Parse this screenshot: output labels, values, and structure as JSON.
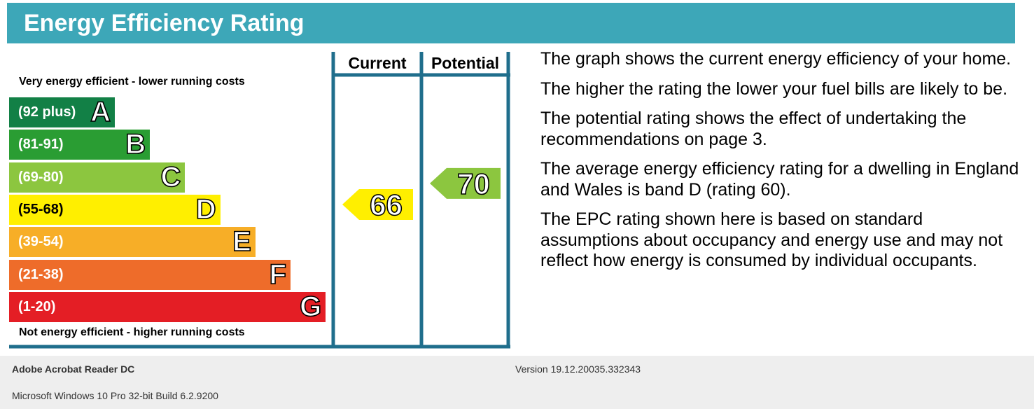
{
  "header": {
    "title": "Energy Efficiency Rating"
  },
  "chart_data": {
    "type": "bar",
    "title": "Energy Efficiency Rating",
    "top_label": "Very energy efficient - lower running costs",
    "bottom_label": "Not energy efficient - higher running costs",
    "bands": [
      {
        "letter": "A",
        "range": "(92 plus)",
        "color": "#128046",
        "text_dark": false
      },
      {
        "letter": "B",
        "range": "(81-91)",
        "color": "#2a9d33",
        "text_dark": false
      },
      {
        "letter": "C",
        "range": "(69-80)",
        "color": "#8cc63f",
        "text_dark": false
      },
      {
        "letter": "D",
        "range": "(55-68)",
        "color": "#ffef00",
        "text_dark": true
      },
      {
        "letter": "E",
        "range": "(39-54)",
        "color": "#f7ae27",
        "text_dark": false
      },
      {
        "letter": "F",
        "range": "(21-38)",
        "color": "#ee6c2a",
        "text_dark": false
      },
      {
        "letter": "G",
        "range": "(1-20)",
        "color": "#e41e25",
        "text_dark": false
      }
    ],
    "columns": [
      "Current",
      "Potential"
    ],
    "current": {
      "value": 66,
      "band": "D",
      "color": "#ffef00"
    },
    "potential": {
      "value": 70,
      "band": "C",
      "color": "#8cc63f"
    }
  },
  "description": [
    "The graph shows the current energy efficiency of your home.",
    "The higher the rating the lower your fuel bills are likely to be.",
    "The potential rating shows the effect of undertaking the recommendations on page 3.",
    "The average energy efficiency rating for a dwelling in England and Wales is band D (rating 60).",
    "The EPC rating shown here is based on standard assumptions about occupancy and energy use and may not reflect how energy is consumed by individual occupants."
  ],
  "footer": {
    "app_name": "Adobe Acrobat Reader DC",
    "version": "Version 19.12.20035.332343",
    "os": "Microsoft Windows 10 Pro 32-bit Build 6.2.9200"
  },
  "colors": {
    "header": "#3da7b8",
    "frame": "#1f6e8c"
  }
}
